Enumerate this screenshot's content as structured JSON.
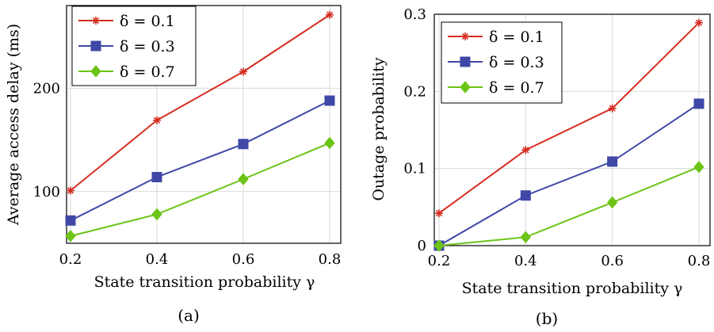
{
  "colors": {
    "red": "#d62d20",
    "blue": "#3f48a6",
    "green": "#6cc417"
  },
  "legend": {
    "entries": [
      {
        "label": "δ = 0.1",
        "color": "#d62d20",
        "marker": "asterisk"
      },
      {
        "label": "δ = 0.3",
        "color": "#3f48a6",
        "marker": "square"
      },
      {
        "label": "δ = 0.7",
        "color": "#6cc417",
        "marker": "diamond"
      }
    ]
  },
  "chart_data": [
    {
      "type": "line",
      "caption": "(a)",
      "xlabel": "State transition probability γ",
      "ylabel": "Average access delay (ms)",
      "x": [
        0.2,
        0.4,
        0.6,
        0.8
      ],
      "xlim": [
        0.2,
        0.8
      ],
      "ylim": [
        50,
        280
      ],
      "xticks": [
        "0.2",
        "0.4",
        "0.6",
        "0.8"
      ],
      "yticks": [
        "100",
        "200"
      ],
      "ytick_values": [
        100,
        200
      ],
      "grid": true,
      "legend_position": "top-left",
      "series": [
        {
          "name": "δ = 0.1",
          "values": [
            101,
            169,
            216,
            271
          ]
        },
        {
          "name": "δ = 0.3",
          "values": [
            72,
            114,
            146,
            188
          ]
        },
        {
          "name": "δ = 0.7",
          "values": [
            57,
            78,
            112,
            147
          ]
        }
      ]
    },
    {
      "type": "line",
      "caption": "(b)",
      "xlabel": "State transition probability γ",
      "ylabel": "Outage probability",
      "x": [
        0.2,
        0.4,
        0.6,
        0.8
      ],
      "xlim": [
        0.2,
        0.8
      ],
      "ylim": [
        0,
        0.3
      ],
      "xticks": [
        "0.2",
        "0.4",
        "0.6",
        "0.8"
      ],
      "yticks": [
        "0",
        "0.1",
        "0.2",
        "0.3"
      ],
      "ytick_values": [
        0,
        0.1,
        0.2,
        0.3
      ],
      "grid": true,
      "legend_position": "top-left",
      "series": [
        {
          "name": "δ = 0.1",
          "values": [
            0.042,
            0.124,
            0.178,
            0.289
          ]
        },
        {
          "name": "δ = 0.3",
          "values": [
            0.0,
            0.065,
            0.109,
            0.184
          ]
        },
        {
          "name": "δ = 0.7",
          "values": [
            0.0,
            0.011,
            0.056,
            0.102
          ]
        }
      ]
    }
  ]
}
